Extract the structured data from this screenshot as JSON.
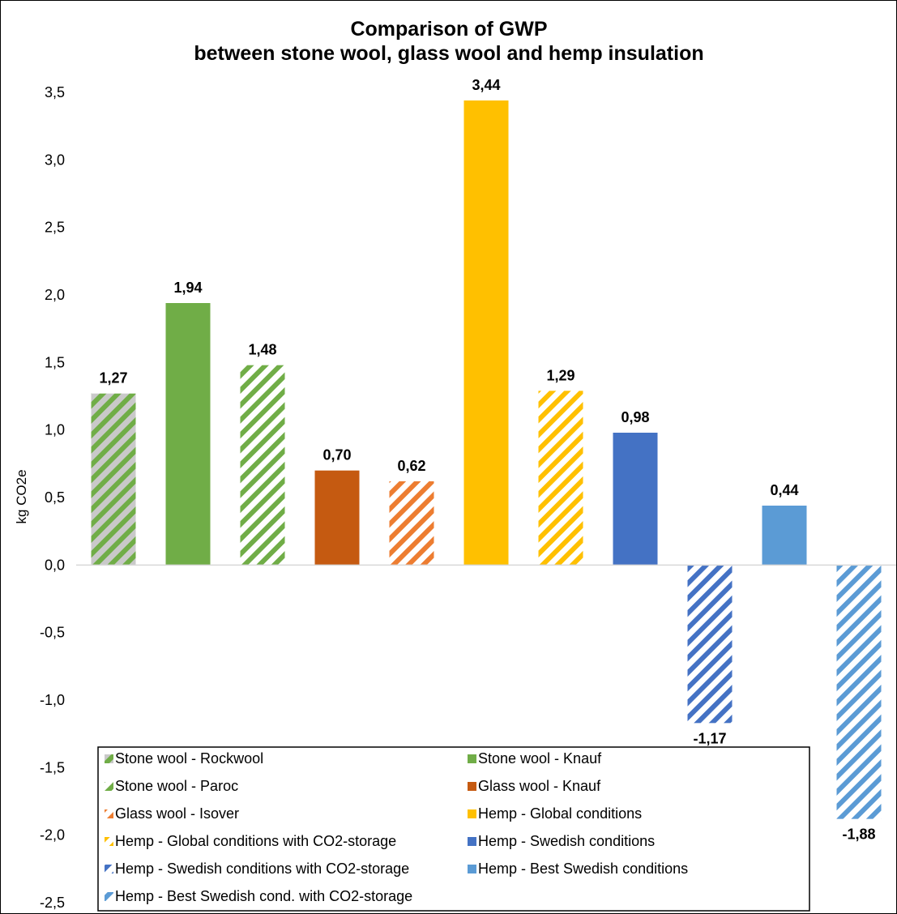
{
  "chart_data": {
    "type": "bar",
    "title": "Comparison of GWP",
    "subtitle": "between stone wool, glass wool and hemp insulation",
    "ylabel": "kg CO2e",
    "xlabel": "",
    "ylim": [
      -2.5,
      3.5
    ],
    "yticks": [
      3.5,
      3.0,
      2.5,
      2.0,
      1.5,
      1.0,
      0.5,
      0.0,
      -0.5,
      -1.0,
      -1.5,
      -2.0,
      -2.5
    ],
    "ytick_labels": [
      "3,5",
      "3,0",
      "2,5",
      "2,0",
      "1,5",
      "1,0",
      "0,5",
      "0,0",
      "-0,5",
      "-1,0",
      "-1,5",
      "-2,0",
      "-2,5"
    ],
    "grid": false,
    "legend_position": "bottom",
    "series": [
      {
        "name": "Stone wool - Rockwool",
        "value": 1.27,
        "label": "1,27",
        "color": "#70ad47",
        "bg": "#c9c9c9",
        "pattern": "stripe"
      },
      {
        "name": "Stone wool - Knauf",
        "value": 1.94,
        "label": "1,94",
        "color": "#70ad47",
        "bg": "#70ad47",
        "pattern": "solid"
      },
      {
        "name": "Stone wool - Paroc",
        "value": 1.48,
        "label": "1,48",
        "color": "#70ad47",
        "bg": "#ffffff",
        "pattern": "stripe"
      },
      {
        "name": "Glass wool - Knauf",
        "value": 0.7,
        "label": "0,70",
        "color": "#c55a11",
        "bg": "#c55a11",
        "pattern": "solid"
      },
      {
        "name": "Glass wool - Isover",
        "value": 0.62,
        "label": "0,62",
        "color": "#ed7d31",
        "bg": "#ffffff",
        "pattern": "stripe"
      },
      {
        "name": "Hemp - Global conditions",
        "value": 3.44,
        "label": "3,44",
        "color": "#ffc000",
        "bg": "#ffc000",
        "pattern": "solid"
      },
      {
        "name": "Hemp - Global conditions with CO2-storage",
        "value": 1.29,
        "label": "1,29",
        "color": "#ffc000",
        "bg": "#ffffff",
        "pattern": "stripe"
      },
      {
        "name": "Hemp - Swedish conditions",
        "value": 0.98,
        "label": "0,98",
        "color": "#4472c4",
        "bg": "#4472c4",
        "pattern": "solid"
      },
      {
        "name": "Hemp - Swedish conditions with CO2-storage",
        "value": -1.17,
        "label": "-1,17",
        "color": "#4472c4",
        "bg": "#ffffff",
        "pattern": "stripe"
      },
      {
        "name": "Hemp - Best Swedish conditions",
        "value": 0.44,
        "label": "0,44",
        "color": "#5b9bd5",
        "bg": "#5b9bd5",
        "pattern": "solid"
      },
      {
        "name": "Hemp - Best Swedish cond. with CO2-storage",
        "value": -1.88,
        "label": "-1,88",
        "color": "#5b9bd5",
        "bg": "#ffffff",
        "pattern": "stripe"
      }
    ]
  }
}
